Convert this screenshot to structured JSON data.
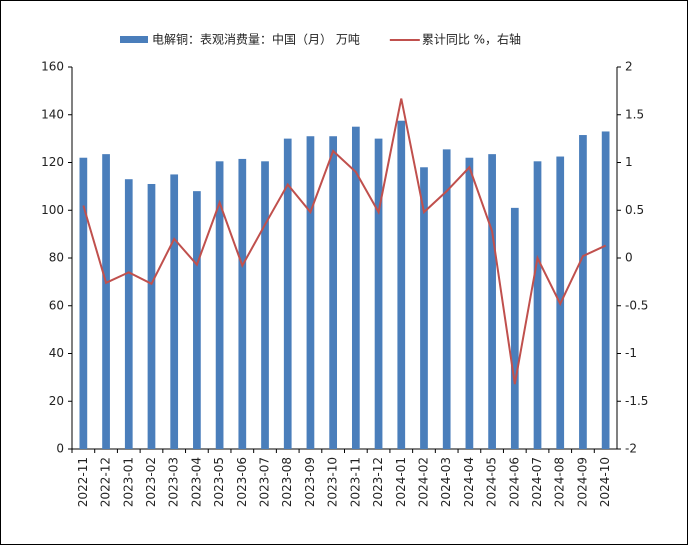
{
  "chart_data": {
    "type": "bar-line",
    "categories": [
      "2022-11",
      "2022-12",
      "2023-01",
      "2023-02",
      "2023-03",
      "2023-04",
      "2023-05",
      "2023-06",
      "2023-07",
      "2023-08",
      "2023-09",
      "2023-10",
      "2023-11",
      "2023-12",
      "2024-01",
      "2024-02",
      "2024-03",
      "2024-04",
      "2024-05",
      "2024-06",
      "2024-07",
      "2024-08",
      "2024-09",
      "2024-10"
    ],
    "series": [
      {
        "name": "电解铜：表观消费量：中国（月） 万吨",
        "color": "#4a7ebb",
        "type": "bar",
        "values": [
          122,
          123.5,
          113,
          111,
          115,
          108,
          120.5,
          121.5,
          120.5,
          130,
          131,
          131,
          135,
          130,
          137.5,
          118,
          125.5,
          122,
          123.5,
          101,
          120.5,
          122.5,
          131.5,
          133
        ]
      },
      {
        "name": "累计同比 %，右轴",
        "color": "#c0504d",
        "type": "line",
        "axis": "y2",
        "values": [
          0.55,
          -0.26,
          -0.15,
          -0.27,
          0.2,
          -0.07,
          0.58,
          -0.08,
          0.35,
          0.77,
          0.48,
          1.12,
          0.9,
          0.48,
          1.67,
          0.48,
          0.7,
          0.95,
          0.28,
          -1.32,
          0.0,
          -0.48,
          0.02,
          0.13
        ]
      }
    ],
    "ylim": [
      0,
      160
    ],
    "yticks": [
      0,
      20,
      40,
      60,
      80,
      100,
      120,
      140,
      160
    ],
    "y2lim": [
      -2,
      2
    ],
    "y2ticks": [
      -2,
      -1.5,
      -1,
      -0.5,
      0,
      0.5,
      1,
      1.5,
      2
    ]
  }
}
